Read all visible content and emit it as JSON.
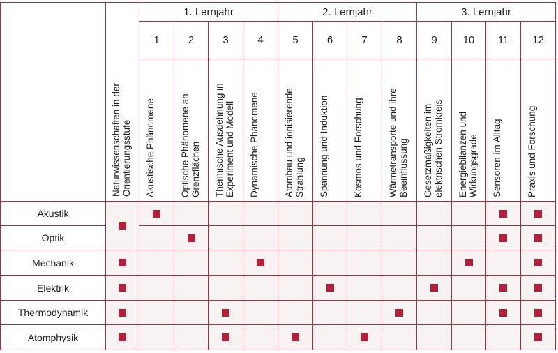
{
  "table": {
    "years": [
      "1. Lernjahr",
      "2. Lernjahr",
      "3. Lernjahr"
    ],
    "modules": [
      {
        "number": "1",
        "title": "Akustische Phänomene"
      },
      {
        "number": "2",
        "title": "Optische Phänomene an Grenzflächen"
      },
      {
        "number": "3",
        "title": "Thermische Ausdehnung in Experiment und Modell"
      },
      {
        "number": "4",
        "title": "Dynamische Phänomene"
      },
      {
        "number": "5",
        "title": "Atombau und ionisierende Strahlung"
      },
      {
        "number": "6",
        "title": "Spannung und Induktion"
      },
      {
        "number": "7",
        "title": "Kosmos und Forschung"
      },
      {
        "number": "8",
        "title": "Wärmetransporte und ihre Beeinflussung"
      },
      {
        "number": "9",
        "title": "Gesetzmäßigkeiten im elektrischen Stromkreis"
      },
      {
        "number": "10",
        "title": "Energiebilanzen und Wirkungsgrade"
      },
      {
        "number": "11",
        "title": "Sensoren im Alltag"
      },
      {
        "number": "12",
        "title": "Praxis und Forschung"
      }
    ],
    "orientation_header": "Naturwissenschaften in der Orientierungsstufe",
    "rows": [
      {
        "label": "Akustik",
        "orientation": true,
        "marks": [
          1,
          11,
          12
        ]
      },
      {
        "label": "Optik",
        "orientation": true,
        "marks": [
          2,
          11,
          12
        ]
      },
      {
        "label": "Mechanik",
        "orientation": true,
        "marks": [
          4,
          10,
          12
        ]
      },
      {
        "label": "Elektrik",
        "orientation": true,
        "marks": [
          6,
          9,
          11,
          12
        ]
      },
      {
        "label": "Thermodynamik",
        "orientation": true,
        "marks": [
          3,
          8,
          11,
          12
        ]
      },
      {
        "label": "Atomphysik",
        "orientation": true,
        "marks": [
          3,
          5,
          7,
          12
        ]
      }
    ],
    "colors": {
      "border": "#b3293f",
      "mark": "#b3203b",
      "cell_bg": "#f7f3f3"
    }
  }
}
